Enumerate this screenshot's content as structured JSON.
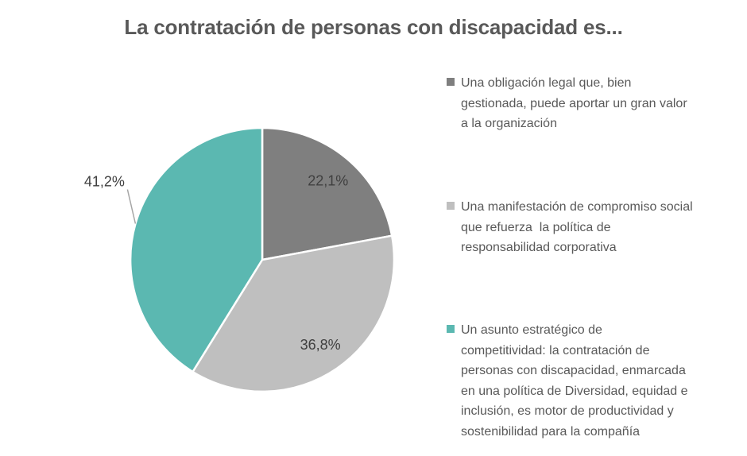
{
  "page": {
    "background": "#FFFFFF"
  },
  "chart_data": {
    "type": "pie",
    "title": "La contratación de personas con discapacidad es...",
    "legend_position": "right",
    "start_angle_deg": 0,
    "direction": "clockwise",
    "slices": [
      {
        "id": "obligacion-legal",
        "label": "Una obligación legal que, bien gestionada, puede aportar un gran valor a la organización",
        "label_lines": [
          "Una obligación legal que, bien",
          "gestionada, puede aportar un gran valor",
          "a la organización"
        ],
        "value": 22.1,
        "value_display": "22,1%",
        "color": "#7F7F7F",
        "label_position": "inside"
      },
      {
        "id": "compromiso-social",
        "label": "Una manifestación de compromiso social que refuerza  la política de responsabilidad corporativa",
        "label_lines": [
          "Una manifestación de compromiso social",
          "que refuerza  la política de",
          "responsabilidad corporativa"
        ],
        "value": 36.8,
        "value_display": "36,8%",
        "color": "#BFBFBF",
        "label_position": "inside"
      },
      {
        "id": "asunto-estrategico",
        "label": "Un asunto estratégico de competitividad: la contratación de personas con discapacidad, enmarcada en una política de Diversidad, equidad e inclusión, es motor de productividad y sostenibilidad para la compañía",
        "label_lines": [
          "Un asunto estratégico de",
          "competitividad: la contratación de",
          "personas con discapacidad, enmarcada",
          "en una política de Diversidad, equidad e",
          "inclusión, es motor de productividad y",
          "sostenibilidad para la compañía"
        ],
        "value": 41.2,
        "value_display": "41,2%",
        "color": "#5BB8B1",
        "label_position": "outside"
      }
    ],
    "colors": {
      "title_text": "#595959",
      "legend_text": "#595959",
      "data_label_text": "#404040",
      "leader_line": "#A6A6A6",
      "slice_separator": "#FFFFFF"
    }
  }
}
